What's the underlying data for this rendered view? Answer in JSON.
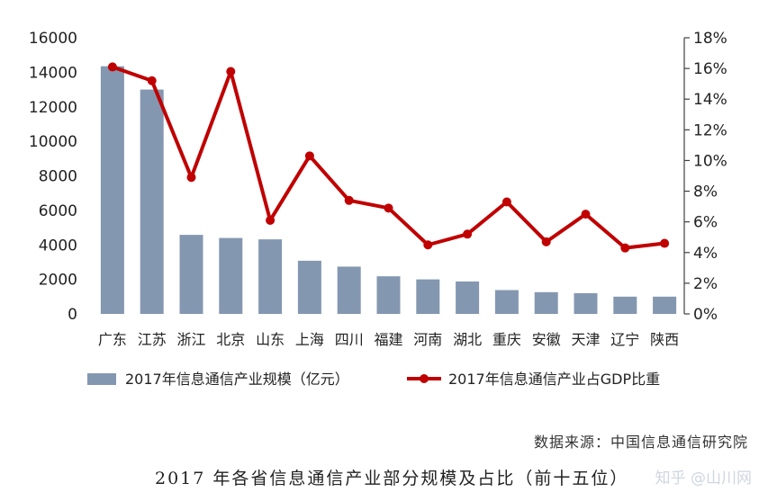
{
  "chart_data": {
    "type": "bar+line",
    "title": "",
    "categories": [
      "广东",
      "江苏",
      "浙江",
      "北京",
      "山东",
      "上海",
      "四川",
      "福建",
      "河南",
      "湖北",
      "重庆",
      "安徽",
      "天津",
      "辽宁",
      "陕西"
    ],
    "series": [
      {
        "name": "2017年信息通信产业规模（亿元）",
        "type": "bar",
        "axis": "left",
        "color": "#8497b0",
        "values": [
          14350,
          13000,
          4580,
          4400,
          4320,
          3080,
          2740,
          2180,
          2000,
          1880,
          1380,
          1260,
          1200,
          1000,
          1000
        ]
      },
      {
        "name": "2017年信息通信产业占GDP比重",
        "type": "line",
        "axis": "right",
        "color": "#c00000",
        "values": [
          16.1,
          15.2,
          8.9,
          15.8,
          6.1,
          10.3,
          7.4,
          6.9,
          4.5,
          5.2,
          7.3,
          4.7,
          6.5,
          4.3,
          4.6
        ]
      }
    ],
    "y_left": {
      "min": 0,
      "max": 16000,
      "ticks": [
        "0",
        "2000",
        "4000",
        "6000",
        "8000",
        "10000",
        "12000",
        "14000",
        "16000"
      ]
    },
    "y_right": {
      "min": 0,
      "max": 18,
      "ticks": [
        "0%",
        "2%",
        "4%",
        "6%",
        "8%",
        "10%",
        "12%",
        "14%",
        "16%",
        "18%"
      ]
    },
    "grid": false,
    "legend_position": "bottom"
  },
  "source_text": "数据来源：中国信息通信研究院",
  "caption": "2017 年各省信息通信产业部分规模及占比（前十五位）",
  "watermark": "知乎 @山川网"
}
